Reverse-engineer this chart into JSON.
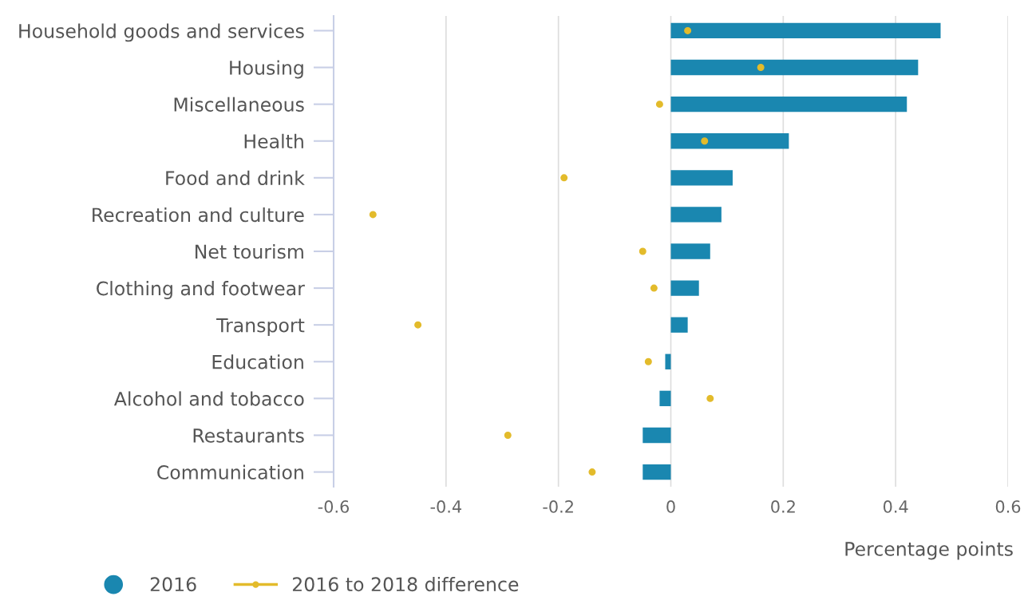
{
  "chart_data": {
    "type": "bar",
    "orientation": "horizontal",
    "xlabel": "Percentage points",
    "categories": [
      "Household goods and services",
      "Housing",
      "Miscellaneous",
      "Health",
      "Food and drink",
      "Recreation and culture",
      "Net tourism",
      "Clothing and footwear",
      "Transport",
      "Education",
      "Alcohol and tobacco",
      "Restaurants",
      "Communication"
    ],
    "series": [
      {
        "name": "2016",
        "color": "#1a87b0",
        "values": [
          0.48,
          0.44,
          0.42,
          0.21,
          0.11,
          0.09,
          0.07,
          0.05,
          0.03,
          -0.01,
          -0.02,
          -0.05,
          -0.05
        ]
      },
      {
        "name": "2016 to 2018 difference",
        "type": "scatter",
        "color": "#e3bb2b",
        "values": [
          0.03,
          0.16,
          -0.02,
          0.06,
          -0.19,
          -0.53,
          -0.05,
          -0.03,
          -0.45,
          -0.04,
          0.07,
          -0.29,
          -0.14
        ]
      }
    ],
    "xlim": [
      -0.6,
      0.6
    ],
    "xticks": [
      -0.6,
      -0.4,
      -0.2,
      0,
      0.2,
      0.4,
      0.6
    ],
    "grid": "x",
    "legend": "bottom left",
    "marker": "circle"
  }
}
